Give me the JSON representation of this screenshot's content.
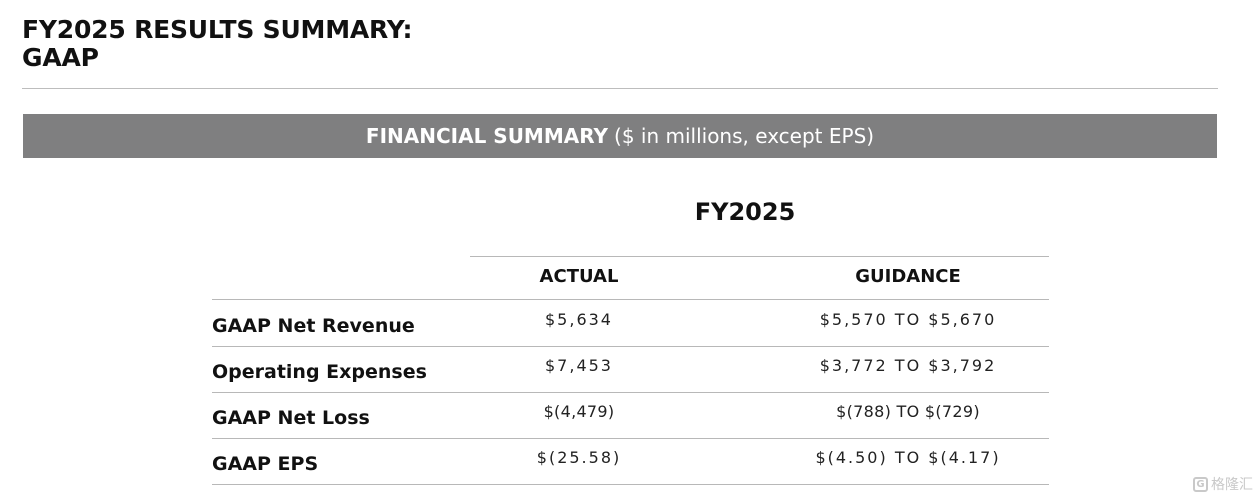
{
  "page": {
    "title_line1": "FY2025 RESULTS SUMMARY:",
    "title_line2": "GAAP"
  },
  "banner": {
    "strong": "FINANCIAL SUMMARY",
    "light": "($ in millions, except EPS)"
  },
  "table": {
    "period": "FY2025",
    "columns": {
      "actual": "ACTUAL",
      "guidance": "GUIDANCE"
    },
    "rows": [
      {
        "label": "GAAP Net Revenue",
        "actual": "$5,634",
        "guidance": "$5,570 TO $5,670"
      },
      {
        "label": "Operating Expenses",
        "actual": "$7,453",
        "guidance": "$3,772 TO $3,792"
      },
      {
        "label": "GAAP Net Loss",
        "actual": "$(4,479)",
        "guidance": "$(788) TO $(729)"
      },
      {
        "label": "GAAP EPS",
        "actual": "$(25.58)",
        "guidance": "$(4.50) TO $(4.17)"
      }
    ]
  },
  "watermark": {
    "mark": "G",
    "text": "格隆汇"
  }
}
